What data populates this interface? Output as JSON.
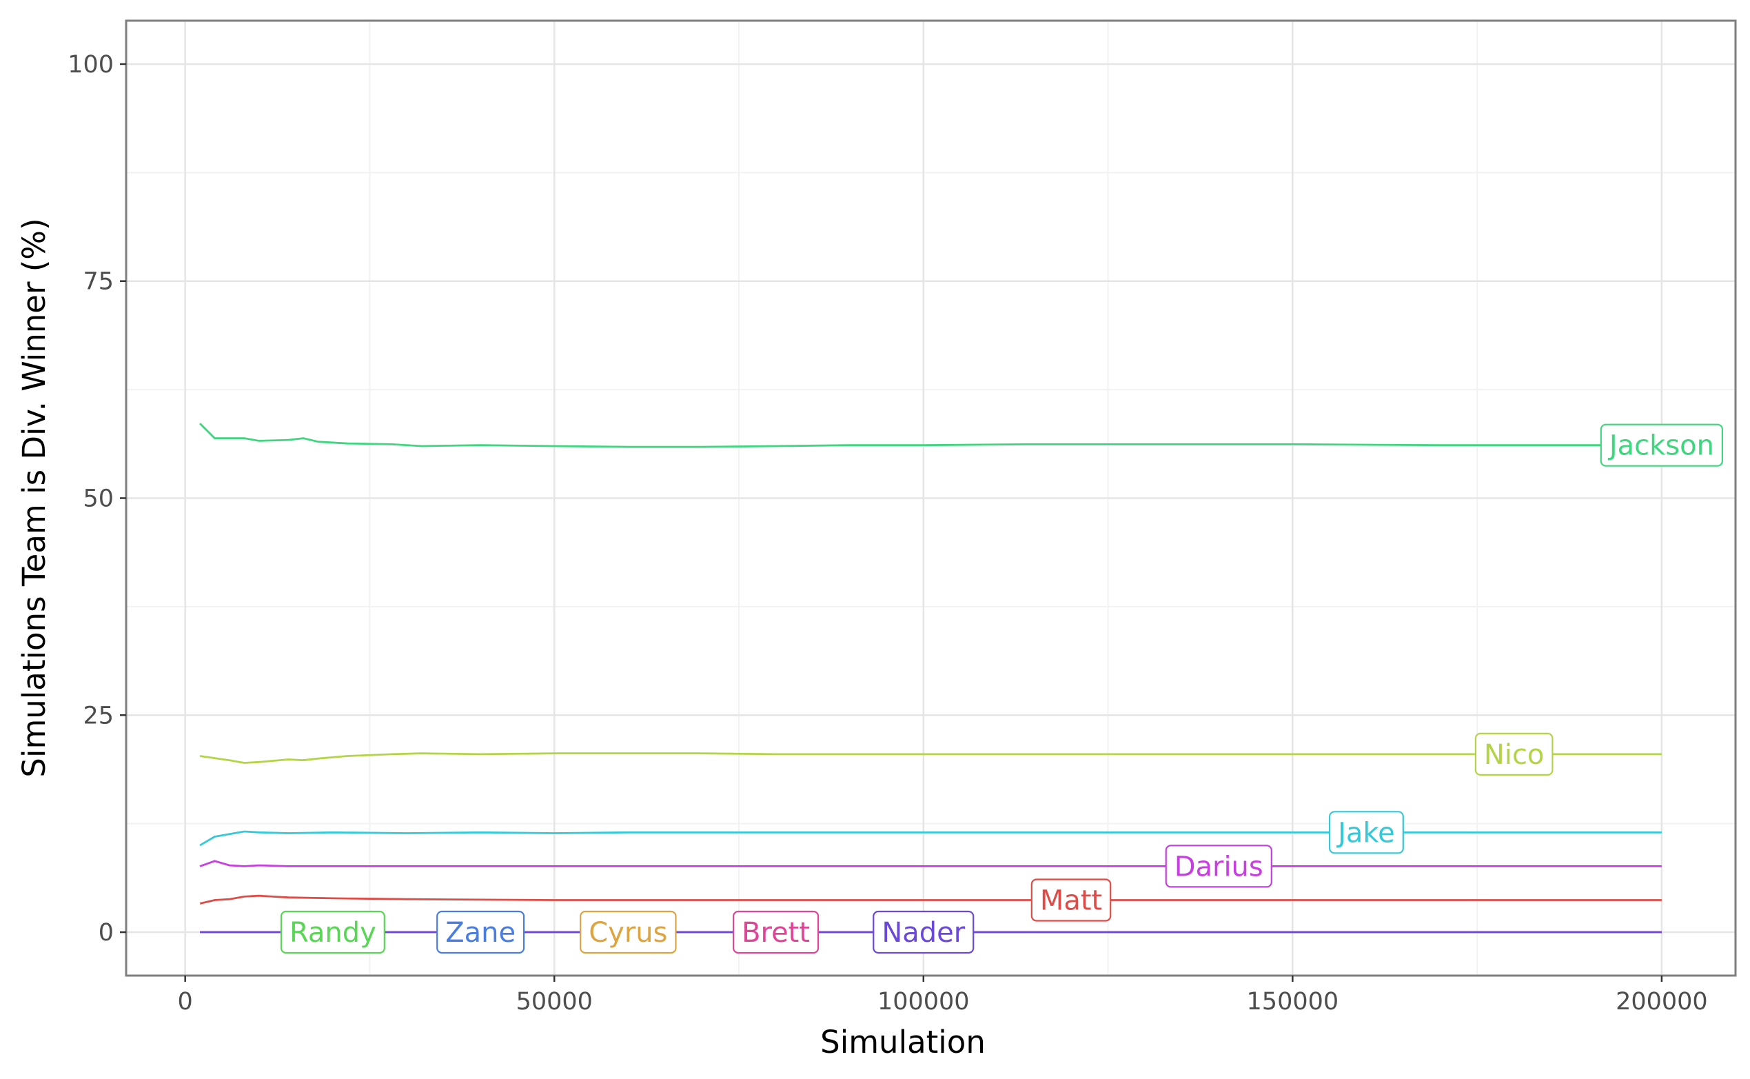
{
  "chart_data": {
    "type": "line",
    "xlabel": "Simulation",
    "ylabel": "Simulations Team is Div. Winner (%)",
    "xlim": [
      -8000,
      210000
    ],
    "ylim": [
      -5,
      105
    ],
    "x_ticks": [
      0,
      50000,
      100000,
      150000,
      200000
    ],
    "y_ticks": [
      0,
      25,
      50,
      75,
      100
    ],
    "grid": true,
    "legend": "direct labels at line ends",
    "series": [
      {
        "name": "Jackson",
        "color": "#3ed67f",
        "label_x": 200000,
        "x": [
          2000,
          4000,
          8000,
          10000,
          14000,
          16000,
          18000,
          22000,
          28000,
          32000,
          40000,
          50000,
          60000,
          70000,
          80000,
          90000,
          100000,
          114000,
          120000,
          150000,
          170000,
          200000
        ],
        "y": [
          58.6,
          56.9,
          56.9,
          56.6,
          56.7,
          56.9,
          56.5,
          56.3,
          56.2,
          56.0,
          56.1,
          56.0,
          55.9,
          55.9,
          56.0,
          56.1,
          56.1,
          56.2,
          56.2,
          56.2,
          56.1,
          56.1
        ]
      },
      {
        "name": "Nico",
        "color": "#b3d445",
        "label_x": 180000,
        "x": [
          2000,
          6000,
          8000,
          10000,
          14000,
          16000,
          18000,
          22000,
          28000,
          32000,
          40000,
          50000,
          60000,
          70000,
          80000,
          100000,
          150000,
          200000
        ],
        "y": [
          20.3,
          19.8,
          19.5,
          19.6,
          19.9,
          19.8,
          20.0,
          20.3,
          20.5,
          20.6,
          20.5,
          20.6,
          20.6,
          20.6,
          20.5,
          20.5,
          20.5,
          20.5
        ]
      },
      {
        "name": "Jake",
        "color": "#35c9d8",
        "label_x": 160000,
        "x": [
          2000,
          4000,
          8000,
          10000,
          14000,
          20000,
          30000,
          40000,
          50000,
          60000,
          80000,
          100000,
          150000,
          200000
        ],
        "y": [
          10.0,
          11.0,
          11.6,
          11.5,
          11.4,
          11.5,
          11.4,
          11.5,
          11.4,
          11.5,
          11.5,
          11.5,
          11.5,
          11.5
        ]
      },
      {
        "name": "Darius",
        "color": "#c73fe0",
        "label_x": 140000,
        "x": [
          2000,
          4000,
          6000,
          8000,
          10000,
          14000,
          20000,
          30000,
          50000,
          100000,
          150000,
          200000
        ],
        "y": [
          7.6,
          8.2,
          7.7,
          7.6,
          7.7,
          7.6,
          7.6,
          7.6,
          7.6,
          7.6,
          7.6,
          7.6
        ]
      },
      {
        "name": "Matt",
        "color": "#de4c47",
        "label_x": 120000,
        "x": [
          2000,
          4000,
          6000,
          8000,
          10000,
          14000,
          20000,
          30000,
          50000,
          100000,
          150000,
          200000
        ],
        "y": [
          3.3,
          3.7,
          3.8,
          4.1,
          4.2,
          4.0,
          3.9,
          3.8,
          3.7,
          3.7,
          3.7,
          3.7
        ]
      },
      {
        "name": "Randy",
        "color": "#5ad656",
        "label_x": 20000,
        "x": [
          2000,
          200000
        ],
        "y": [
          0.0,
          0.0
        ]
      },
      {
        "name": "Zane",
        "color": "#4a7de0",
        "label_x": 40000,
        "x": [
          2000,
          200000
        ],
        "y": [
          0.0,
          0.0
        ]
      },
      {
        "name": "Cyrus",
        "color": "#dda43f",
        "label_x": 60000,
        "x": [
          2000,
          200000
        ],
        "y": [
          0.0,
          0.0
        ]
      },
      {
        "name": "Brett",
        "color": "#df4595",
        "label_x": 80000,
        "x": [
          2000,
          200000
        ],
        "y": [
          0.0,
          0.0
        ]
      },
      {
        "name": "Nader",
        "color": "#6a48d8",
        "label_x": 100000,
        "x": [
          2000,
          200000
        ],
        "y": [
          0.0,
          0.0
        ]
      }
    ]
  }
}
